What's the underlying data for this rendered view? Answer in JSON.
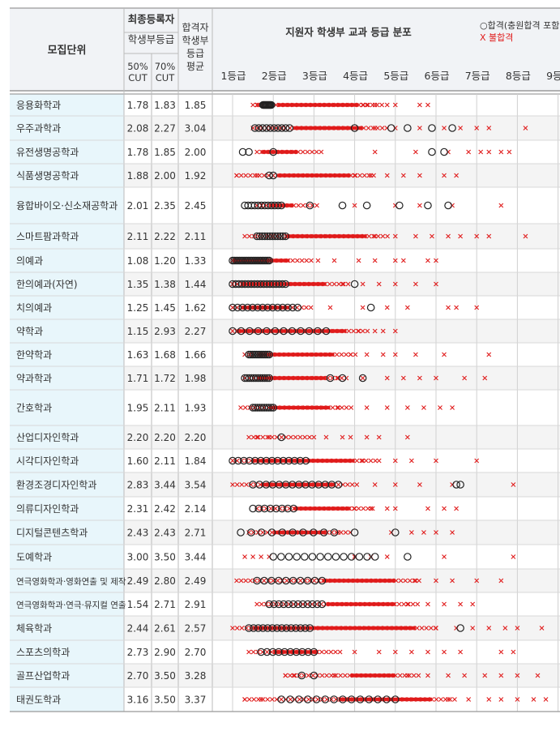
{
  "header": {
    "col_unit": "모집단위",
    "final_reg": "최종등록자",
    "final_reg_sub": "학생부등급",
    "cut50": "50%\nCUT",
    "cut70": "70%\nCUT",
    "avg": "합격자\n학생부\n등급\n평균",
    "dist_title": "지원자 학생부 교과 등급 분포",
    "legend_pass": "○합격(충원합격 포함)",
    "legend_fail": "X 불합격"
  },
  "chart_data": {
    "type": "scatter",
    "title": "지원자 학생부 교과 등급 분포",
    "x_ticks": [
      "1등급",
      "2등급",
      "3등급",
      "4등급",
      "5등급",
      "6등급",
      "7등급",
      "8등급",
      "9등급"
    ],
    "xlim": [
      1,
      9
    ],
    "series": [
      {
        "name": "합격(충원합격 포함)",
        "marker": "circle",
        "color": "#222222"
      },
      {
        "name": "불합격",
        "marker": "x",
        "color": "#e01b1b"
      }
    ],
    "rows": [
      {
        "unit": "응용화학과",
        "cut50": "1.78",
        "cut70": "1.83",
        "avg": "1.85",
        "pass": [
          1.75,
          1.95
        ],
        "pass_n": 10,
        "fail": [
          1.5,
          5.8
        ],
        "solid": [
          2.1,
          4.1
        ],
        "extra_fail": [
          1.6,
          1.65,
          4.2,
          4.3,
          4.5,
          4.8,
          5.0,
          5.6,
          5.8
        ]
      },
      {
        "unit": "우주과학과",
        "cut50": "2.08",
        "cut70": "2.27",
        "avg": "3.04",
        "pass": [
          1.55,
          2.4
        ],
        "pass_n": 10,
        "fail": [
          1.5,
          8.2
        ],
        "solid": [
          2.5,
          4.2
        ],
        "extra_fail": [
          4.5,
          5.0,
          5.6,
          6.2,
          6.6,
          7.0,
          7.3,
          8.2
        ],
        "extra_pass": [
          4.0,
          4.9,
          5.3,
          5.9,
          6.4
        ]
      },
      {
        "unit": "유전생명공학과",
        "cut50": "1.78",
        "cut70": "1.85",
        "avg": "2.00",
        "pass": [
          1.25,
          1.4
        ],
        "pass_n": 2,
        "fail": [
          1.6,
          7.8
        ],
        "solid": [
          1.7,
          2.6
        ],
        "extra_fail": [
          4.5,
          5.5,
          6.3,
          6.8,
          7.1,
          7.3,
          7.6,
          7.8
        ],
        "extra_pass": [
          5.9,
          6.2,
          2.0
        ]
      },
      {
        "unit": "식품생명공학과",
        "cut50": "1.88",
        "cut70": "2.00",
        "avg": "1.92",
        "pass": [
          1.9,
          2.0
        ],
        "pass_n": 2,
        "fail": [
          1.1,
          6.6
        ],
        "solid": [
          2.1,
          3.9
        ],
        "extra_fail": [
          1.1,
          1.6,
          4.0,
          4.4,
          4.8,
          5.2,
          5.6,
          6.2,
          6.5
        ]
      },
      {
        "unit": "융합바이오·신소재공학과",
        "cut50": "2.01",
        "cut70": "2.35",
        "avg": "2.45",
        "pass": [
          1.3,
          2.2
        ],
        "pass_n": 12,
        "fail": [
          1.6,
          7.6
        ],
        "solid": [
          1.9,
          2.5
        ],
        "extra_fail": [
          4.0,
          5.0,
          5.6,
          6.4,
          7.6
        ],
        "extra_pass": [
          2.9,
          3.7,
          4.3,
          5.1,
          5.8,
          6.3
        ]
      },
      {
        "unit": "스마트팜과학과",
        "cut50": "2.11",
        "cut70": "2.22",
        "avg": "2.11",
        "pass": [
          1.6,
          2.3
        ],
        "pass_n": 12,
        "fail": [
          1.3,
          8.2
        ],
        "solid": [
          2.3,
          4.3
        ],
        "extra_fail": [
          4.5,
          5.0,
          5.5,
          5.9,
          6.3,
          6.6,
          7.0,
          7.3,
          8.2
        ]
      },
      {
        "unit": "의예과",
        "cut50": "1.08",
        "cut70": "1.20",
        "avg": "1.33",
        "pass": [
          1.0,
          1.9
        ],
        "pass_n": 22,
        "fail": [
          1.0,
          6.0
        ],
        "solid": [
          1.0,
          2.4
        ],
        "extra_fail": [
          3.1,
          3.5,
          4.1,
          4.5,
          5.0,
          5.2,
          5.8,
          6.0
        ]
      },
      {
        "unit": "한의예과(자연)",
        "cut50": "1.35",
        "cut70": "1.38",
        "avg": "1.44",
        "pass": [
          1.0,
          2.3
        ],
        "pass_n": 18,
        "fail": [
          1.0,
          6.0
        ],
        "solid": [
          1.2,
          3.3
        ],
        "extra_fail": [
          3.7,
          4.2,
          4.6,
          5.0,
          5.5,
          6.0
        ],
        "extra_pass": [
          4.0
        ]
      },
      {
        "unit": "치의예과",
        "cut50": "1.25",
        "cut70": "1.45",
        "avg": "1.62",
        "pass": [
          1.0,
          2.6
        ],
        "pass_n": 14,
        "fail": [
          1.0,
          7.0
        ],
        "solid": [
          1.2,
          2.4
        ],
        "extra_fail": [
          3.4,
          4.2,
          4.8,
          5.3,
          6.3,
          6.5,
          7.0
        ],
        "extra_pass": [
          4.4
        ]
      },
      {
        "unit": "약학과",
        "cut50": "1.15",
        "cut70": "2.93",
        "avg": "2.27",
        "pass": [
          1.0,
          3.3
        ],
        "pass_n": 12,
        "fail": [
          1.0,
          5.0
        ],
        "solid": [
          1.1,
          3.8
        ],
        "extra_fail": [
          4.1,
          4.5,
          4.7,
          5.0
        ]
      },
      {
        "unit": "한약학과",
        "cut50": "1.63",
        "cut70": "1.68",
        "avg": "1.66",
        "pass": [
          1.4,
          1.9
        ],
        "pass_n": 12,
        "fail": [
          1.3,
          7.3
        ],
        "solid": [
          1.6,
          3.5
        ],
        "extra_fail": [
          3.9,
          4.3,
          4.7,
          5.0,
          5.5,
          6.2,
          7.3
        ]
      },
      {
        "unit": "약과학과",
        "cut50": "1.71",
        "cut70": "1.72",
        "avg": "1.98",
        "pass": [
          1.3,
          1.9
        ],
        "pass_n": 12,
        "fail": [
          1.3,
          7.2
        ],
        "solid": [
          1.6,
          3.3
        ],
        "extra_fail": [
          3.6,
          4.2,
          4.8,
          5.2,
          5.6,
          6.0,
          6.7,
          7.2
        ],
        "extra_pass": [
          3.4,
          3.7,
          4.2
        ]
      },
      {
        "unit": "간호학과",
        "cut50": "1.95",
        "cut70": "2.11",
        "avg": "1.93",
        "pass": [
          1.5,
          2.0
        ],
        "pass_n": 10,
        "fail": [
          1.2,
          6.4
        ],
        "solid": [
          1.9,
          3.4
        ],
        "extra_fail": [
          3.6,
          4.3,
          4.8,
          5.3,
          5.7,
          6.1,
          6.4
        ]
      },
      {
        "unit": "산업디자인학과",
        "cut50": "2.20",
        "cut70": "2.20",
        "avg": "2.20",
        "pass": [
          2.2,
          2.2
        ],
        "pass_n": 1,
        "fail": [
          1.4,
          5.3
        ],
        "solid": [
          2.3,
          2.3
        ],
        "extra_fail": [
          1.6,
          1.9,
          3.0,
          3.3,
          3.7,
          3.9,
          4.3,
          4.6,
          5.3
        ]
      },
      {
        "unit": "시각디자인학과",
        "cut50": "1.60",
        "cut70": "2.11",
        "avg": "1.84",
        "pass": [
          1.0,
          2.8
        ],
        "pass_n": 14,
        "fail": [
          1.0,
          7.0
        ],
        "solid": [
          1.5,
          4.0
        ],
        "extra_fail": [
          4.2,
          4.6,
          5.0,
          5.4,
          6.0,
          7.0
        ]
      },
      {
        "unit": "환경조경디자인학과",
        "cut50": "2.83",
        "cut70": "3.44",
        "avg": "3.54",
        "pass": [
          1.5,
          3.6
        ],
        "pass_n": 14,
        "fail": [
          1.0,
          7.9
        ],
        "solid": [
          1.7,
          3.5
        ],
        "extra_fail": [
          4.5,
          5.0,
          5.6,
          6.4,
          7.9
        ],
        "extra_pass": [
          6.5,
          6.6
        ]
      },
      {
        "unit": "의류디자인학과",
        "cut50": "2.31",
        "cut70": "2.42",
        "avg": "2.14",
        "pass": [
          1.5,
          2.5
        ],
        "pass_n": 8,
        "fail": [
          1.6,
          6.6
        ],
        "solid": [
          2.5,
          3.9
        ],
        "extra_fail": [
          4.0,
          4.4,
          4.8,
          5.0,
          5.8,
          6.2,
          6.5
        ]
      },
      {
        "unit": "디지털콘텐츠학과",
        "cut50": "2.43",
        "cut70": "2.43",
        "avg": "2.71",
        "pass": [
          1.2,
          3.5
        ],
        "pass_n": 10,
        "fail": [
          1.4,
          6.5
        ],
        "solid": [
          2.0,
          3.3
        ],
        "extra_fail": [
          3.6,
          4.9,
          5.4,
          5.7,
          6.0,
          6.4
        ],
        "extra_pass": [
          5.0,
          4.0
        ]
      },
      {
        "unit": "도예학과",
        "cut50": "3.00",
        "cut70": "3.50",
        "avg": "3.44",
        "pass": [
          2.0,
          4.5
        ],
        "pass_n": 14,
        "fail": [
          1.3,
          7.9
        ],
        "solid": [
          0,
          0
        ],
        "extra_fail": [
          1.3,
          1.5,
          1.7,
          1.9,
          4.0,
          4.4,
          4.8,
          6.2,
          7.9
        ],
        "extra_pass": [
          5.3
        ]
      },
      {
        "unit": "연극영화학과·영화연출 및 제작",
        "cut50": "2.49",
        "cut70": "2.80",
        "avg": "2.49",
        "pass": [
          1.6,
          3.2
        ],
        "pass_n": 10,
        "fail": [
          1.1,
          7.6
        ],
        "solid": [
          3.2,
          5.0
        ],
        "extra_fail": [
          5.5,
          6.0,
          6.4,
          7.0,
          7.6
        ]
      },
      {
        "unit": "연극영화학과·연극·뮤지컬 연출",
        "cut50": "1.54",
        "cut70": "2.71",
        "avg": "2.91",
        "pass": [
          1.9,
          3.2
        ],
        "pass_n": 12,
        "fail": [
          1.6,
          6.9
        ],
        "solid": [
          3.3,
          5.0
        ],
        "extra_fail": [
          5.3,
          5.8,
          6.2,
          6.6,
          6.9
        ]
      },
      {
        "unit": "체육학과",
        "cut50": "2.44",
        "cut70": "2.61",
        "avg": "2.57",
        "pass": [
          1.4,
          2.9
        ],
        "pass_n": 14,
        "fail": [
          1.0,
          8.6
        ],
        "solid": [
          1.5,
          5.5
        ],
        "extra_fail": [
          6.0,
          6.5,
          6.9,
          7.3,
          7.7,
          8.0,
          8.6
        ],
        "extra_pass": [
          6.6
        ]
      },
      {
        "unit": "스포츠의학과",
        "cut50": "2.73",
        "cut70": "2.90",
        "avg": "2.70",
        "pass": [
          1.7,
          3.0
        ],
        "pass_n": 10,
        "fail": [
          1.4,
          7.9
        ],
        "solid": [
          2.0,
          3.1
        ],
        "extra_fail": [
          4.0,
          4.6,
          5.0,
          5.4,
          5.8,
          6.2,
          6.6,
          7.6,
          7.9
        ]
      },
      {
        "unit": "골프산업학과",
        "cut50": "2.70",
        "cut70": "3.50",
        "avg": "3.28",
        "pass": [
          2.7,
          3.0
        ],
        "pass_n": 2,
        "fail": [
          2.3,
          8.5
        ],
        "solid": [
          3.9,
          5.0
        ],
        "extra_fail": [
          2.3,
          2.5,
          3.5,
          5.3,
          5.8,
          6.3,
          6.7,
          7.2,
          7.6,
          8.0,
          8.5
        ]
      },
      {
        "unit": "태권도학과",
        "cut50": "3.16",
        "cut70": "3.50",
        "avg": "3.37",
        "pass": [
          2.2,
          5.0
        ],
        "pass_n": 14,
        "fail": [
          1.3,
          8.7
        ],
        "solid": [
          3.6,
          5.9
        ],
        "extra_fail": [
          1.3,
          1.7,
          6.3,
          6.8,
          7.3,
          7.6,
          8.0,
          8.4,
          8.7
        ]
      }
    ]
  }
}
